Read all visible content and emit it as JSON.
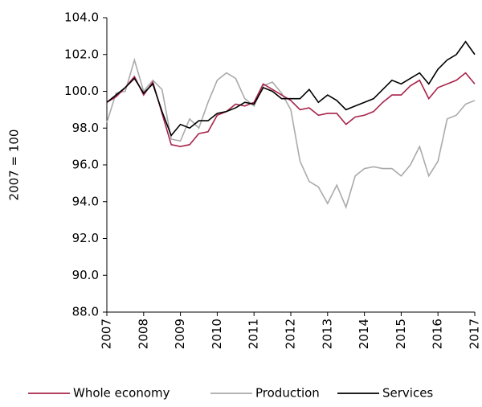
{
  "chart_data": {
    "type": "line",
    "y_label": "2007 = 100",
    "x": [
      2007,
      2007.25,
      2007.5,
      2007.75,
      2008,
      2008.25,
      2008.5,
      2008.75,
      2009,
      2009.25,
      2009.5,
      2009.75,
      2010,
      2010.25,
      2010.5,
      2010.75,
      2011,
      2011.25,
      2011.5,
      2011.75,
      2012,
      2012.25,
      2012.5,
      2012.75,
      2013,
      2013.25,
      2013.5,
      2013.75,
      2014,
      2014.25,
      2014.5,
      2014.75,
      2015,
      2015.25,
      2015.5,
      2015.75,
      2016,
      2016.25,
      2016.5,
      2016.75,
      2017
    ],
    "series": [
      {
        "name": "Whole economy",
        "color": "#a8244a",
        "values": [
          99.4,
          99.7,
          100.2,
          100.8,
          99.8,
          100.5,
          98.8,
          97.1,
          97.0,
          97.1,
          97.7,
          97.8,
          98.7,
          98.9,
          99.3,
          99.2,
          99.4,
          100.4,
          100.1,
          99.8,
          99.5,
          99.0,
          99.1,
          98.7,
          98.8,
          98.8,
          98.2,
          98.6,
          98.7,
          98.9,
          99.4,
          99.8,
          99.8,
          100.3,
          100.6,
          99.6,
          100.2,
          100.4,
          100.6,
          101.0,
          100.4
        ]
      },
      {
        "name": "Production",
        "color": "#aaaaaa",
        "values": [
          98.3,
          99.9,
          100.0,
          101.7,
          100.0,
          100.6,
          100.1,
          97.4,
          97.3,
          98.5,
          98.0,
          99.4,
          100.6,
          101.0,
          100.7,
          99.6,
          99.2,
          100.3,
          100.5,
          99.9,
          99.0,
          96.2,
          95.1,
          94.8,
          93.9,
          94.9,
          93.7,
          95.4,
          95.8,
          95.9,
          95.8,
          95.8,
          95.4,
          96.0,
          97.0,
          95.4,
          96.2,
          98.5,
          98.7,
          99.3,
          99.5
        ]
      },
      {
        "name": "Services",
        "color": "#000000",
        "values": [
          99.4,
          99.8,
          100.2,
          100.7,
          99.9,
          100.4,
          98.9,
          97.6,
          98.2,
          98.0,
          98.4,
          98.4,
          98.8,
          98.9,
          99.1,
          99.4,
          99.3,
          100.2,
          100.0,
          99.6,
          99.6,
          99.6,
          100.1,
          99.4,
          99.8,
          99.5,
          99.0,
          99.2,
          99.4,
          99.6,
          100.1,
          100.6,
          100.4,
          100.7,
          101.0,
          100.4,
          101.2,
          101.7,
          102.0,
          102.7,
          102.0
        ]
      }
    ],
    "xlim": [
      2007,
      2017
    ],
    "xticks": [
      2007,
      2008,
      2009,
      2010,
      2011,
      2012,
      2013,
      2014,
      2015,
      2016,
      2017
    ],
    "ylim": [
      88,
      104
    ],
    "yticks": [
      {
        "value": 88,
        "label": "88.0"
      },
      {
        "value": 90,
        "label": "90.0"
      },
      {
        "value": 92,
        "label": "92.0"
      },
      {
        "value": 94,
        "label": "94.0"
      },
      {
        "value": 96,
        "label": "96.0"
      },
      {
        "value": 98,
        "label": "98.0"
      },
      {
        "value": 100,
        "label": "100.0"
      },
      {
        "value": 102,
        "label": "102.0"
      },
      {
        "value": 104,
        "label": "104.0"
      }
    ],
    "grid": false,
    "legend": "bottom"
  }
}
